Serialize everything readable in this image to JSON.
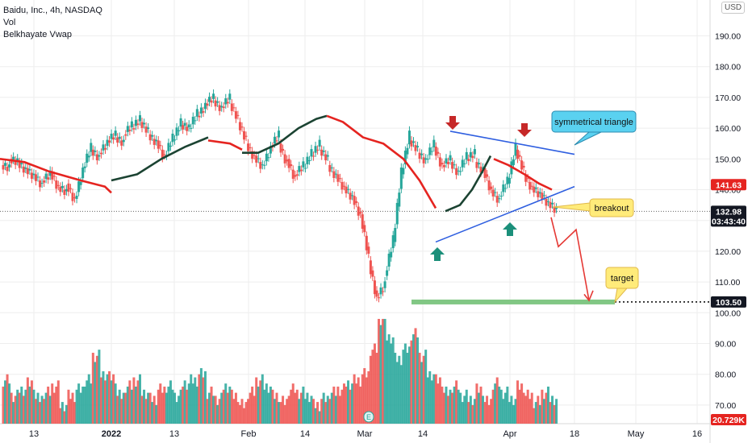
{
  "legend": {
    "title": "Baidu, Inc., 4h, NASDAQ",
    "indicator_1": "Vol",
    "indicator_2": "Belkhayate Vwap"
  },
  "currency": "USD",
  "colors": {
    "up": "#26a69a",
    "down": "#ef5350",
    "vwap_up": "#1b4332",
    "vwap_down": "#e52420",
    "trendline": "#2f5fe0",
    "grid": "#eeeeee",
    "arrow_down": "#c62828",
    "arrow_up": "#1b8f7a",
    "target_zone": "#81c784"
  },
  "price_axis": {
    "ticks": [
      "190.00",
      "180.00",
      "170.00",
      "160.00",
      "150.00",
      "140.00",
      "130.00",
      "120.00",
      "110.00",
      "100.00",
      "90.00",
      "80.00",
      "70.00"
    ],
    "labels": {
      "vwap_value": "141.63",
      "last_price": "132.98",
      "countdown": "03:43:40",
      "target_price": "103.50",
      "volume_value": "20.729K"
    }
  },
  "time_axis": {
    "ticks": [
      "13",
      "2022",
      "13",
      "Feb",
      "14",
      "Mar",
      "14",
      "Apr",
      "18",
      "May",
      "16"
    ]
  },
  "annotations": {
    "triangle_label": "symmetrical triangle",
    "breakout_label": "breakout",
    "target_label": "target"
  },
  "chart_data": {
    "type": "candlestick",
    "symbol": "Baidu, Inc.",
    "timeframe": "4h",
    "exchange": "NASDAQ",
    "y_range": [
      98,
      198
    ],
    "price_levels": {
      "last": 132.98,
      "vwap": 141.63,
      "target": 103.5
    },
    "close_path": [
      [
        148,
        147
      ],
      [
        150,
        149
      ],
      [
        149,
        146
      ],
      [
        147,
        144
      ],
      [
        145,
        141
      ],
      [
        143,
        145
      ],
      [
        146,
        140
      ],
      [
        141,
        139
      ],
      [
        142,
        136
      ],
      [
        137,
        146
      ],
      [
        147,
        154
      ],
      [
        153,
        150
      ],
      [
        152,
        155
      ],
      [
        156,
        158
      ],
      [
        157,
        155
      ],
      [
        158,
        161
      ],
      [
        160,
        163
      ],
      [
        162,
        159
      ],
      [
        158,
        155
      ],
      [
        156,
        150
      ],
      [
        151,
        157
      ],
      [
        156,
        162
      ],
      [
        161,
        160
      ],
      [
        160,
        165
      ],
      [
        164,
        167
      ],
      [
        168,
        170
      ],
      [
        169,
        166
      ],
      [
        167,
        170
      ],
      [
        168,
        163
      ],
      [
        162,
        156
      ],
      [
        155,
        150
      ],
      [
        151,
        147
      ],
      [
        148,
        153
      ],
      [
        154,
        158
      ],
      [
        155,
        148
      ],
      [
        150,
        143
      ],
      [
        145,
        148
      ],
      [
        147,
        152
      ],
      [
        151,
        155
      ],
      [
        153,
        150
      ],
      [
        148,
        144
      ],
      [
        145,
        140
      ],
      [
        141,
        137
      ],
      [
        138,
        131
      ],
      [
        132,
        118
      ],
      [
        117,
        104
      ],
      [
        105,
        109
      ],
      [
        112,
        124
      ],
      [
        123,
        146
      ],
      [
        145,
        158
      ],
      [
        156,
        153
      ],
      [
        152,
        149
      ],
      [
        150,
        155
      ],
      [
        154,
        147
      ],
      [
        148,
        150
      ],
      [
        149,
        145
      ],
      [
        146,
        151
      ],
      [
        150,
        152
      ],
      [
        149,
        146
      ],
      [
        147,
        139
      ],
      [
        140,
        136
      ],
      [
        138,
        143
      ],
      [
        142,
        154
      ],
      [
        153,
        146
      ],
      [
        145,
        140
      ],
      [
        141,
        138
      ],
      [
        139,
        135
      ],
      [
        136,
        133
      ]
    ],
    "volume_path": [
      78,
      73,
      75,
      77,
      72,
      74,
      76,
      70,
      73,
      75,
      78,
      86,
      80,
      79,
      73,
      76,
      78,
      74,
      72,
      75,
      76,
      73,
      77,
      78,
      80,
      74,
      72,
      76,
      73,
      70,
      74,
      78,
      76,
      73,
      71,
      75,
      74,
      73,
      70,
      72,
      74,
      75,
      77,
      78,
      80,
      88,
      98,
      92,
      85,
      88,
      93,
      86,
      80,
      78,
      74,
      76,
      73,
      72,
      75,
      71,
      77,
      74,
      72,
      76,
      73,
      71,
      74,
      72
    ]
  }
}
